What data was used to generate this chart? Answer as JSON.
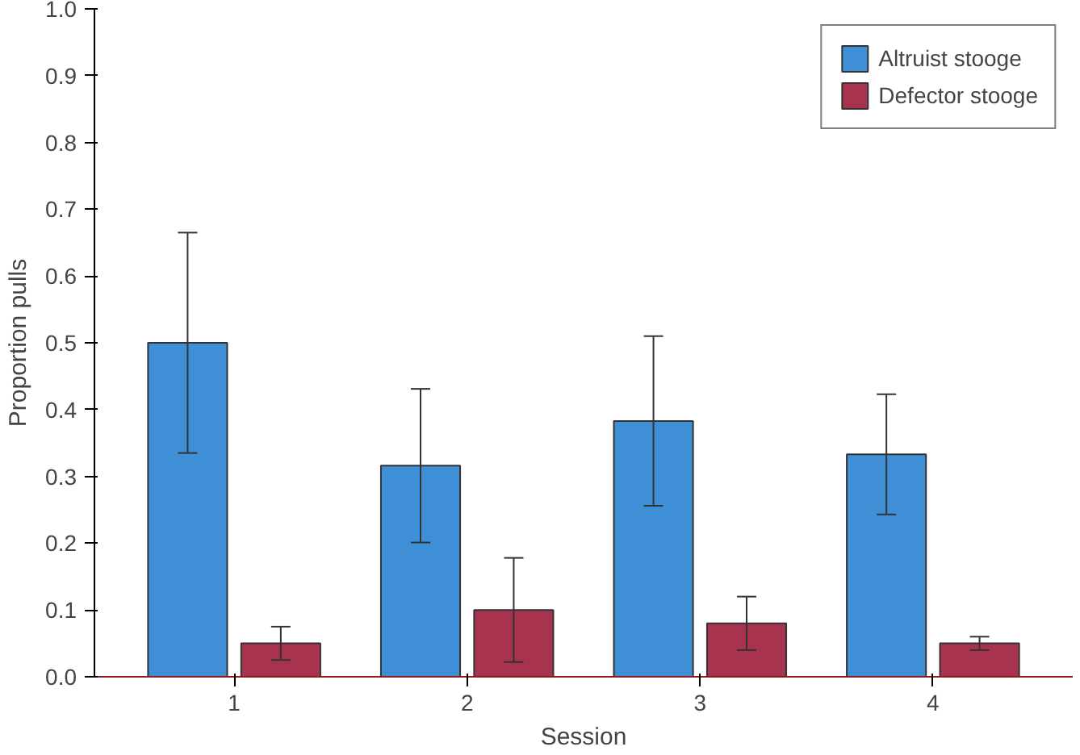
{
  "chart_data": {
    "type": "bar",
    "xlabel": "Session",
    "ylabel": "Proportion pulls",
    "categories": [
      "1",
      "2",
      "3",
      "4"
    ],
    "series": [
      {
        "name": "Altruist stooge",
        "color": "#3f8fd6",
        "values": [
          0.5,
          0.316,
          0.383,
          0.333
        ],
        "errors": [
          0.165,
          0.115,
          0.127,
          0.09
        ]
      },
      {
        "name": "Defector stooge",
        "color": "#a8334f",
        "values": [
          0.05,
          0.1,
          0.08,
          0.05
        ],
        "errors": [
          0.025,
          0.078,
          0.04,
          0.01
        ]
      }
    ],
    "ylim": [
      0,
      1.0
    ],
    "yticks": [
      {
        "value": 0,
        "label": "0.0"
      },
      0.1,
      0.2,
      0.3,
      0.4,
      0.5,
      0.6,
      0.7,
      0.8,
      0.9,
      {
        "value": 1,
        "label": "1.0"
      }
    ],
    "grid": false,
    "legend": "top right"
  }
}
